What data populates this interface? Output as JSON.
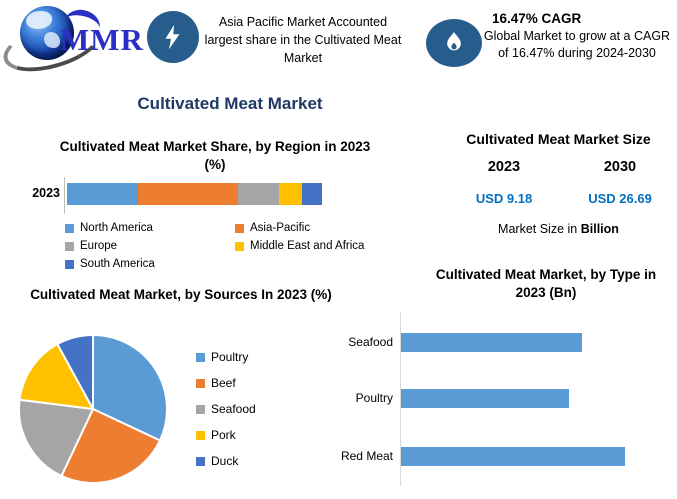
{
  "header": {
    "logo": {
      "text": "MMR",
      "icon": "globe-icon"
    },
    "insight_lightning": {
      "icon": "lightning-icon",
      "text": "Asia Pacific Market Accounted largest share in the Cultivated Meat Market"
    },
    "insight_cagr": {
      "icon": "flame-icon",
      "title": "16.47% CAGR",
      "text": "Global Market to grow at a CAGR of 16.47% during 2024-2030"
    }
  },
  "main_title": "Cultivated Meat Market",
  "colors": {
    "title_navy": "#1F3864",
    "icon_circle": "#275D8C",
    "value_blue": "#0070C0",
    "axis_line": "#BFBFBF"
  },
  "chart_data": [
    {
      "type": "bar",
      "subtype": "stacked-horizontal-percent",
      "title": "Cultivated Meat Market Share, by Region in 2023 (%)",
      "categories": [
        "2023"
      ],
      "series": [
        {
          "name": "North America",
          "color": "#5B9BD5",
          "values": [
            28
          ]
        },
        {
          "name": "Asia-Pacific",
          "color": "#ED7D31",
          "values": [
            39
          ]
        },
        {
          "name": "Europe",
          "color": "#A5A5A5",
          "values": [
            16
          ]
        },
        {
          "name": "Middle East and Africa",
          "color": "#FFC000",
          "values": [
            9
          ]
        },
        {
          "name": "South America",
          "color": "#4472C4",
          "values": [
            8
          ]
        }
      ],
      "xlim": [
        0,
        100
      ],
      "legend_position": "bottom",
      "grid": false
    },
    {
      "type": "table",
      "title": "Cultivated Meat Market Size",
      "columns": [
        "2023",
        "2030"
      ],
      "rows": [
        [
          "USD 9.18",
          "USD 26.69"
        ]
      ],
      "note": [
        "Market Size in",
        "Billion"
      ],
      "value_color": "#0070C0"
    },
    {
      "type": "pie",
      "title": "Cultivated Meat Market, by Sources In 2023 (%)",
      "labels": [
        "Poultry",
        "Beef",
        "Seafood",
        "Pork",
        "Duck"
      ],
      "values": [
        32,
        25,
        20,
        15,
        8
      ],
      "colors": [
        "#5B9BD5",
        "#ED7D31",
        "#A5A5A5",
        "#FFC000",
        "#4472C4"
      ],
      "start_angle_deg": 0,
      "legend_position": "right"
    },
    {
      "type": "bar",
      "subtype": "horizontal",
      "title": "Cultivated Meat Market, by Type in 2023 (Bn)",
      "categories": [
        "Seafood",
        "Poultry",
        "Red Meat"
      ],
      "values": [
        2.9,
        2.7,
        3.6
      ],
      "xlim": [
        0,
        4
      ],
      "bar_color": "#5B9BD5",
      "grid": false
    }
  ]
}
